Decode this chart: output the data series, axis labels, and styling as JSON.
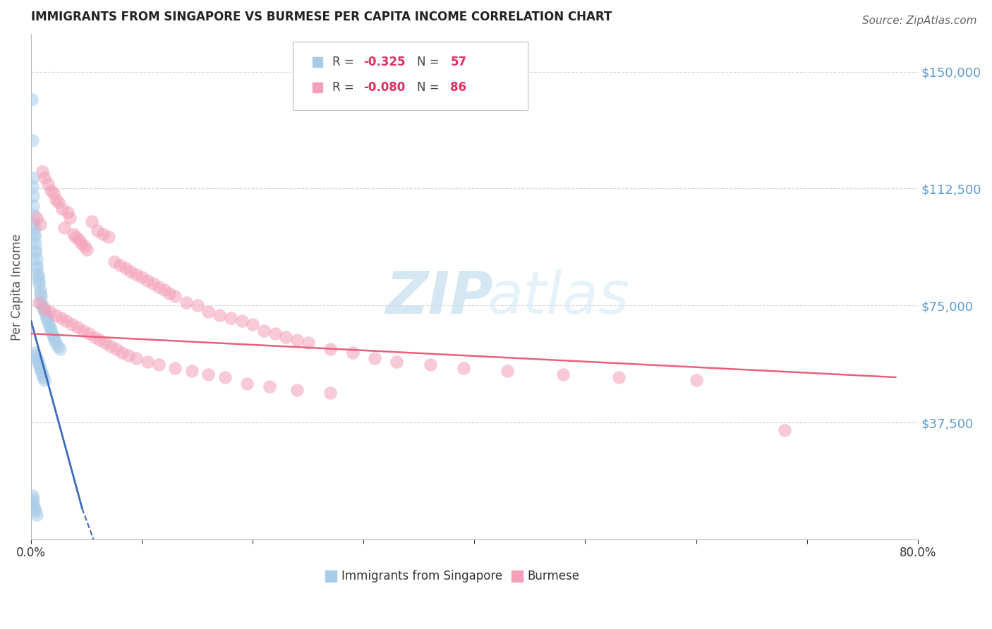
{
  "title": "IMMIGRANTS FROM SINGAPORE VS BURMESE PER CAPITA INCOME CORRELATION CHART",
  "source": "Source: ZipAtlas.com",
  "ylabel": "Per Capita Income",
  "xlim": [
    0.0,
    0.8
  ],
  "ylim": [
    0,
    162000
  ],
  "yticks": [
    0,
    37500,
    75000,
    112500,
    150000
  ],
  "ytick_labels": [
    "",
    "$37,500",
    "$75,000",
    "$112,500",
    "$150,000"
  ],
  "xticks": [
    0.0,
    0.1,
    0.2,
    0.3,
    0.4,
    0.5,
    0.6,
    0.7,
    0.8
  ],
  "xtick_labels": [
    "0.0%",
    "",
    "",
    "",
    "",
    "",
    "",
    "",
    "80.0%"
  ],
  "background_color": "#ffffff",
  "grid_color": "#c8c8c8",
  "singapore_color": "#a8cce8",
  "burmese_color": "#f4a0b8",
  "sg_R": "-0.325",
  "sg_N": "57",
  "bm_R": "-0.080",
  "bm_N": "86",
  "trend_sg_color": "#3b6bbf",
  "trend_bm_color": "#e8607a",
  "watermark_zip_color": "#c5ddf0",
  "watermark_atlas_color": "#d0e8f5",
  "axis_color": "#5b9bd5",
  "source_color": "#666666",
  "title_color": "#222222",
  "sg_x": [
    0.0008,
    0.001,
    0.0012,
    0.0015,
    0.0018,
    0.002,
    0.0022,
    0.0025,
    0.003,
    0.003,
    0.003,
    0.0035,
    0.004,
    0.004,
    0.005,
    0.005,
    0.005,
    0.006,
    0.006,
    0.007,
    0.007,
    0.008,
    0.008,
    0.009,
    0.009,
    0.01,
    0.011,
    0.012,
    0.013,
    0.014,
    0.015,
    0.016,
    0.017,
    0.018,
    0.019,
    0.02,
    0.021,
    0.022,
    0.024,
    0.026,
    0.003,
    0.004,
    0.005,
    0.006,
    0.007,
    0.008,
    0.009,
    0.01,
    0.011,
    0.012,
    0.001,
    0.002,
    0.003,
    0.004,
    0.005,
    0.001,
    0.002
  ],
  "sg_y": [
    141000,
    128000,
    116000,
    113000,
    110000,
    107000,
    104000,
    101000,
    100000,
    98000,
    97000,
    95000,
    93000,
    92000,
    90000,
    88000,
    87000,
    85000,
    84000,
    83000,
    82000,
    80000,
    79000,
    78000,
    76000,
    75000,
    74000,
    73000,
    72000,
    71000,
    70000,
    69000,
    68000,
    67000,
    66000,
    65000,
    64000,
    63000,
    62000,
    61000,
    60000,
    59000,
    58000,
    57000,
    56000,
    55000,
    54000,
    53000,
    52000,
    51000,
    12000,
    11000,
    10000,
    9000,
    8000,
    14000,
    13000
  ],
  "bm_x": [
    0.005,
    0.008,
    0.01,
    0.012,
    0.015,
    0.018,
    0.02,
    0.022,
    0.025,
    0.028,
    0.03,
    0.033,
    0.035,
    0.038,
    0.04,
    0.043,
    0.045,
    0.048,
    0.05,
    0.055,
    0.06,
    0.065,
    0.07,
    0.075,
    0.08,
    0.085,
    0.09,
    0.095,
    0.1,
    0.105,
    0.11,
    0.115,
    0.12,
    0.125,
    0.13,
    0.14,
    0.15,
    0.16,
    0.17,
    0.18,
    0.19,
    0.2,
    0.21,
    0.22,
    0.23,
    0.24,
    0.25,
    0.27,
    0.29,
    0.31,
    0.33,
    0.36,
    0.39,
    0.43,
    0.48,
    0.53,
    0.6,
    0.68,
    0.007,
    0.012,
    0.017,
    0.022,
    0.027,
    0.032,
    0.037,
    0.042,
    0.047,
    0.052,
    0.057,
    0.062,
    0.067,
    0.072,
    0.077,
    0.082,
    0.088,
    0.095,
    0.105,
    0.115,
    0.13,
    0.145,
    0.16,
    0.175,
    0.195,
    0.215,
    0.24,
    0.27
  ],
  "bm_y": [
    103000,
    101000,
    118000,
    116000,
    114000,
    112000,
    111000,
    109000,
    108000,
    106000,
    100000,
    105000,
    103000,
    98000,
    97000,
    96000,
    95000,
    94000,
    93000,
    102000,
    99000,
    98000,
    97000,
    89000,
    88000,
    87000,
    86000,
    85000,
    84000,
    83000,
    82000,
    81000,
    80000,
    79000,
    78000,
    76000,
    75000,
    73000,
    72000,
    71000,
    70000,
    69000,
    67000,
    66000,
    65000,
    64000,
    63000,
    61000,
    60000,
    58000,
    57000,
    56000,
    55000,
    54000,
    53000,
    52000,
    51000,
    35000,
    76000,
    74000,
    73000,
    72000,
    71000,
    70000,
    69000,
    68000,
    67000,
    66000,
    65000,
    64000,
    63000,
    62000,
    61000,
    60000,
    59000,
    58000,
    57000,
    56000,
    55000,
    54000,
    53000,
    52000,
    50000,
    49000,
    48000,
    47000
  ],
  "trend_sg_x0": 0.0,
  "trend_sg_x1": 0.046,
  "trend_sg_y0": 70000,
  "trend_sg_y1": 10000,
  "trend_sg_xd0": 0.046,
  "trend_sg_xd1": 0.12,
  "trend_sg_yd0": 10000,
  "trend_sg_yd1": -62000,
  "trend_bm_x0": 0.0,
  "trend_bm_x1": 0.78,
  "trend_bm_y0": 66000,
  "trend_bm_y1": 52000
}
